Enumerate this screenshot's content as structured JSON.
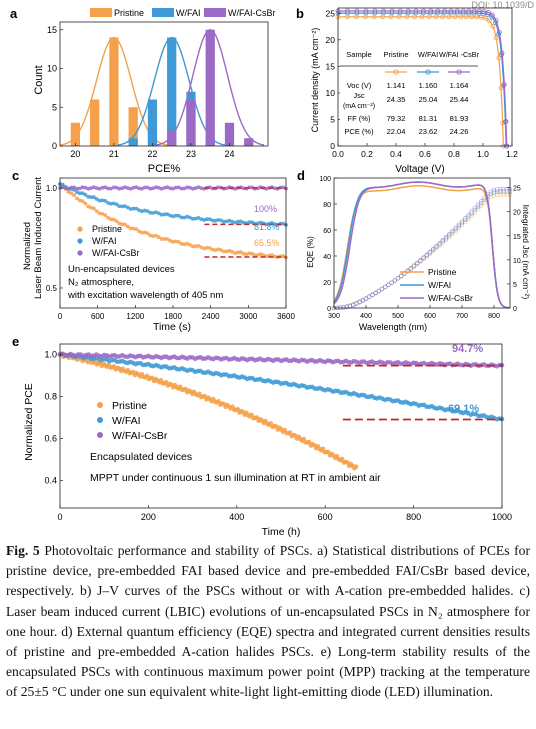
{
  "doi": "DOI: 10.1039/D",
  "panels": {
    "a": {
      "letter": "a",
      "xlabel": "PCE%",
      "ylabel": "Count",
      "legend": [
        "Pristine",
        "W/FAI",
        "W/FAI-CsBr"
      ]
    },
    "b": {
      "letter": "b",
      "xlabel": "Voltage (V)",
      "ylabel": "Current density (mA cm⁻²)"
    },
    "c": {
      "letter": "c",
      "xlabel": "Time (s)",
      "ylabel_line1": "Normalized",
      "ylabel_line2": "Laser Beam Induced Current",
      "legend": [
        "Pristine",
        "W/FAI",
        "W/FAI-CsBr"
      ],
      "notes": [
        "Un-encapsulated devices",
        "N₂ atmosphere,",
        "with excitation wavelength of 405 nm"
      ],
      "annotations": [
        "100%",
        "81.8%",
        "65.5%"
      ]
    },
    "d": {
      "letter": "d",
      "xlabel": "Wavelength (nm)",
      "ylabel": "EQE (%)",
      "ylabel2": "Integrated Jsc (mA cm⁻²)",
      "legend": [
        "Pristine",
        "W/FAI",
        "W/FAI-CsBr"
      ]
    },
    "e": {
      "letter": "e",
      "xlabel": "Time (h)",
      "ylabel": "Normalized PCE",
      "legend": [
        "Pristine",
        "W/FAI",
        "W/FAI-CsBr"
      ],
      "notes": [
        "Encapsulated devices",
        "MPPT under continuous 1 sun illumination at RT in ambient air"
      ],
      "annotations": [
        "94.7%",
        "69.1%"
      ]
    }
  },
  "table_b": {
    "headers": [
      "Sample",
      "Pristine",
      "W/FAI",
      "W/FAI -CsBr"
    ],
    "rows": [
      {
        "label": "Voc (V)",
        "values": [
          "1.141",
          "1.160",
          "1.164"
        ]
      },
      {
        "label": "Jsc (mA cm⁻²)",
        "values": [
          "24.35",
          "25.04",
          "25.44"
        ]
      },
      {
        "label": "FF (%)",
        "values": [
          "79.32",
          "81.31",
          "81.93"
        ]
      },
      {
        "label": "PCE (%)",
        "values": [
          "22.04",
          "23.62",
          "24.26"
        ]
      }
    ]
  },
  "colors": {
    "pristine": "#f5a04a",
    "fai": "#3d9ad6",
    "csbr": "#9b6ac6",
    "dash": "#c0272d"
  },
  "caption": {
    "fig": "Fig. 5",
    "text": " Photovoltaic performance and stability of PSCs. a) Statistical distributions of PCEs for pristine device, pre-embedded FAI based device and pre-embedded FAI/CsBr based device, respectively. b) J–V curves of the PSCs without or with A-cation pre-embedded halides. c) Laser beam induced current (LBIC) evolutions of un-encapsulated PSCs in N₂ atmosphere for one hour. d) External quantum efficiency (EQE) spectra and integrated current densities results of pristine and pre-embedded A-cation halides PSCs. e) Long-term stability results of the encapsulated PSCs with continuous maximum power point (MPP) tracking at the temperature of 25±5 °C under one sun equivalent white-light light-emitting diode (LED) illumination."
  },
  "chart_data": [
    {
      "type": "bar",
      "panel": "a",
      "xlabel": "PCE%",
      "ylabel": "Count",
      "xlim": [
        19.6,
        25
      ],
      "ylim": [
        0,
        16
      ],
      "x_ticks": [
        20,
        21,
        22,
        23,
        24
      ],
      "y_ticks": [
        0,
        5,
        10,
        15
      ],
      "series": [
        {
          "name": "Pristine",
          "x": [
            20.0,
            20.5,
            21.0,
            21.5,
            22.0
          ],
          "values": [
            3,
            6,
            14,
            5,
            2
          ]
        },
        {
          "name": "W/FAI",
          "x": [
            21.5,
            22.0,
            22.5,
            23.0,
            23.5
          ],
          "values": [
            1,
            6,
            14,
            7,
            1
          ]
        },
        {
          "name": "W/FAI-CsBr",
          "x": [
            22.5,
            23.0,
            23.5,
            24.0,
            24.5
          ],
          "values": [
            2,
            6,
            15,
            3,
            1
          ]
        }
      ]
    },
    {
      "type": "line",
      "panel": "b",
      "xlabel": "Voltage (V)",
      "ylabel": "Current density",
      "xlim": [
        0,
        1.2
      ],
      "ylim": [
        0,
        26
      ],
      "x_ticks": [
        0.0,
        0.2,
        0.4,
        0.6,
        0.8,
        1.0,
        1.2
      ],
      "y_ticks": [
        0,
        5,
        10,
        15,
        20,
        25
      ],
      "series": [
        {
          "name": "Pristine",
          "voc": 1.141,
          "jsc": 24.35
        },
        {
          "name": "W/FAI",
          "voc": 1.16,
          "jsc": 25.04
        },
        {
          "name": "W/FAI-CsBr",
          "voc": 1.164,
          "jsc": 25.44
        }
      ]
    },
    {
      "type": "scatter",
      "panel": "c",
      "xlabel": "Time (s)",
      "xlim": [
        0,
        3600
      ],
      "ylim": [
        0.4,
        1.05
      ],
      "x_ticks": [
        0,
        600,
        1200,
        1800,
        2400,
        3000,
        3600
      ],
      "y_ticks": [
        0.5,
        1.0
      ],
      "series": [
        {
          "name": "Pristine",
          "start": 1.02,
          "end": 0.655
        },
        {
          "name": "W/FAI",
          "start": 1.02,
          "end": 0.818
        },
        {
          "name": "W/FAI-CsBr",
          "start": 1.0,
          "end": 1.0
        }
      ]
    },
    {
      "type": "line",
      "panel": "d",
      "xlabel": "Wavelength (nm)",
      "ylabel": "EQE (%)",
      "xlim": [
        300,
        850
      ],
      "ylim": [
        0,
        100
      ],
      "x_ticks": [
        300,
        400,
        500,
        600,
        700,
        800
      ],
      "y_ticks": [
        0,
        20,
        40,
        60,
        80,
        100
      ],
      "y2_ticks": [
        0,
        5,
        10,
        15,
        20,
        25
      ],
      "series": [
        {
          "name": "Pristine"
        },
        {
          "name": "W/FAI"
        },
        {
          "name": "W/FAI-CsBr"
        }
      ]
    },
    {
      "type": "scatter",
      "panel": "e",
      "xlabel": "Time (h)",
      "xlim": [
        0,
        1000
      ],
      "ylim": [
        0.27,
        1.05
      ],
      "x_ticks": [
        0,
        200,
        400,
        600,
        800,
        1000
      ],
      "y_ticks": [
        0.4,
        0.6,
        0.8,
        1.0
      ],
      "series": [
        {
          "name": "Pristine",
          "start": 1.0,
          "end_t": 670,
          "end": 0.46
        },
        {
          "name": "W/FAI",
          "start": 1.0,
          "end": 0.691
        },
        {
          "name": "W/FAI-CsBr",
          "start": 1.0,
          "end": 0.947
        }
      ]
    }
  ]
}
